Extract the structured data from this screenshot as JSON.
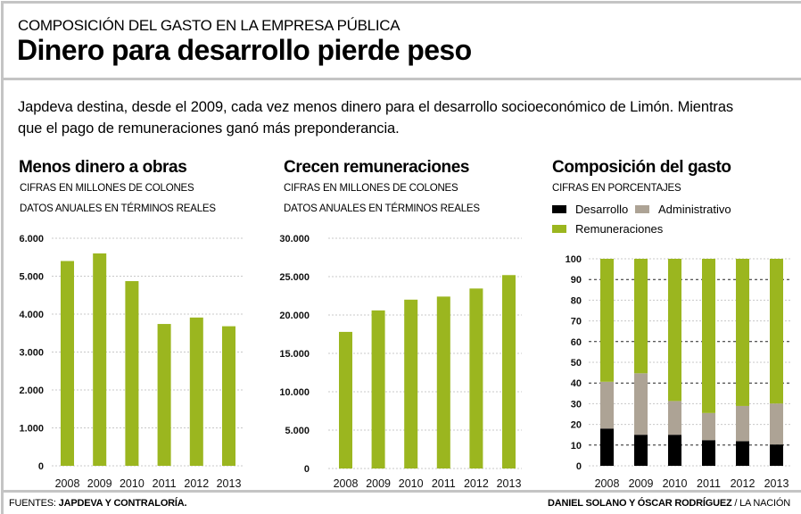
{
  "header": {
    "kicker": "COMPOSICIÓN DEL GASTO EN LA EMPRESA PÚBLICA",
    "headline": "Dinero para desarrollo pierde peso",
    "intro_line1": "Japdeva destina, desde el 2009, cada vez menos dinero para el desarrollo socioeconómico de Limón. Mientras",
    "intro_line2": "que el pago de remuneraciones ganó más preponderancia."
  },
  "colors": {
    "green": "#9bb61f",
    "gray": "#ada395",
    "black": "#000000",
    "frame": "#c4c4c4"
  },
  "footer": {
    "sources_label": "FUENTES: ",
    "sources_value": "JAPDEVA Y CONTRALORÍA.",
    "credit_authors": "DANIEL SOLANO Y ÓSCAR RODRÍGUEZ",
    "credit_outlet": " / LA NACIÓN"
  },
  "chart_data": [
    {
      "type": "bar",
      "title": "Menos dinero a obras",
      "subtitle1": "CIFRAS EN MILLONES DE COLONES",
      "subtitle2": "DATOS ANUALES EN TÉRMINOS REALES",
      "categories": [
        "2008",
        "2009",
        "2010",
        "2011",
        "2012",
        "2013"
      ],
      "values": [
        5400,
        5600,
        4870,
        3740,
        3910,
        3680
      ],
      "yticks": [
        0,
        1000,
        2000,
        3000,
        4000,
        5000,
        6000
      ],
      "ytick_labels": [
        "0",
        "1.000",
        "2.000",
        "3.000",
        "4.000",
        "5.000",
        "6.000"
      ],
      "ylim": [
        0,
        6000
      ],
      "xlabel": "",
      "ylabel": "",
      "grid": true,
      "color": "#9bb61f"
    },
    {
      "type": "bar",
      "title": "Crecen remuneraciones",
      "subtitle1": "CIFRAS EN MILLONES DE COLONES",
      "subtitle2": "DATOS ANUALES EN TÉRMINOS REALES",
      "categories": [
        "2008",
        "2009",
        "2010",
        "2011",
        "2012",
        "2013"
      ],
      "values": [
        17800,
        20600,
        22000,
        22400,
        23450,
        25200
      ],
      "yticks": [
        0,
        5000,
        10000,
        15000,
        20000,
        25000,
        30000
      ],
      "ytick_labels": [
        "0",
        "5.000",
        "10.000",
        "15.000",
        "20.000",
        "25.000",
        "30.000"
      ],
      "ylim": [
        0,
        30000
      ],
      "xlabel": "",
      "ylabel": "",
      "grid": true,
      "color": "#9bb61f"
    },
    {
      "type": "bar",
      "stacked": true,
      "title": "Composición del gasto",
      "subtitle1": "CIFRAS EN PORCENTAJES",
      "categories": [
        "2008",
        "2009",
        "2010",
        "2011",
        "2012",
        "2013"
      ],
      "series": [
        {
          "name": "Desarrollo",
          "color": "#000000",
          "values": [
            18,
            15,
            15,
            12.4,
            11.9,
            10.3
          ]
        },
        {
          "name": "Administrativo",
          "color": "#ada395",
          "values": [
            22.6,
            29.7,
            16.3,
            13.1,
            17,
            19.8
          ]
        },
        {
          "name": "Remuneraciones",
          "color": "#9bb61f",
          "values": [
            59.4,
            55.3,
            68.7,
            74.5,
            71.1,
            69.9
          ]
        }
      ],
      "yticks": [
        0,
        10,
        20,
        30,
        40,
        50,
        60,
        70,
        80,
        90,
        100
      ],
      "ytick_labels": [
        "0",
        "10",
        "20",
        "30",
        "40",
        "50",
        "60",
        "70",
        "80",
        "90",
        "100"
      ],
      "ylim": [
        0,
        100
      ],
      "legend": "top-left",
      "grid": true
    }
  ]
}
